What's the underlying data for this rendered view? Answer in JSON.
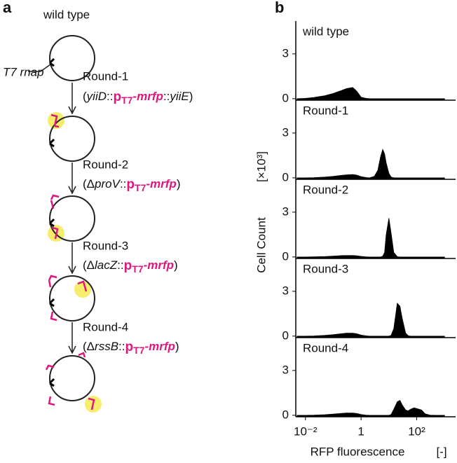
{
  "panel_a": {
    "label": "a",
    "start": "wild type",
    "gene": "T7 rnap",
    "rounds": [
      {
        "name": "Round-1",
        "open": "(",
        "gene": "yiiD",
        "link": "::",
        "promoter": "p",
        "promoter_sub": "T7",
        "cargo": "-mrfp",
        "link2": "::",
        "gene2": "yiiE",
        "close": ")"
      },
      {
        "name": "Round-2",
        "open": "(Δ",
        "gene": "proV",
        "link": "::",
        "promoter": "p",
        "promoter_sub": "T7",
        "cargo": "-mrfp",
        "close": ")"
      },
      {
        "name": "Round-3",
        "open": "(Δ",
        "gene": "lacZ",
        "link": "::",
        "promoter": "p",
        "promoter_sub": "T7",
        "cargo": "-mrfp",
        "close": ")"
      },
      {
        "name": "Round-4",
        "open": "(Δ",
        "gene": "rssB",
        "link": "::",
        "promoter": "p",
        "promoter_sub": "T7",
        "cargo": "-mrfp",
        "close": ")"
      }
    ]
  },
  "panel_b": {
    "label": "b",
    "ylabel": "Cell Count",
    "yunit": "[×10³]",
    "xlabel": "RFP fluorescence",
    "xunit": "[-]"
  },
  "chart_data": [
    {
      "type": "area",
      "title": "wild type",
      "color": "#000000",
      "xscale": "log",
      "xlim": [
        0.0045,
        2500
      ],
      "ylim": [
        -0.1,
        5.2
      ],
      "yticks": [
        0,
        3
      ],
      "x": [
        0.005,
        0.01,
        0.02,
        0.05,
        0.1,
        0.2,
        0.3,
        0.5,
        0.7,
        1,
        1.5,
        2,
        3,
        4,
        5,
        6,
        7,
        8,
        10,
        12,
        15,
        20,
        25,
        30,
        40,
        50,
        60,
        80,
        100,
        150,
        200,
        300,
        500,
        1000
      ],
      "values": [
        0,
        0.02,
        0.08,
        0.2,
        0.35,
        0.55,
        0.68,
        0.75,
        0.5,
        0.1,
        0.02,
        0,
        0,
        0,
        0,
        0,
        0,
        0,
        0,
        0,
        0,
        0,
        0,
        0,
        0,
        0,
        0,
        0,
        0,
        0,
        0,
        0,
        0,
        0
      ]
    },
    {
      "type": "area",
      "title": "Round-1",
      "color": "#000000",
      "xscale": "log",
      "xlim": [
        0.0045,
        2500
      ],
      "ylim": [
        -0.1,
        5.2
      ],
      "yticks": [
        0,
        3
      ],
      "x": [
        0.005,
        0.01,
        0.02,
        0.05,
        0.1,
        0.2,
        0.3,
        0.5,
        0.7,
        1,
        1.5,
        2,
        3,
        4,
        5,
        6,
        7,
        8,
        10,
        12,
        15,
        20,
        25,
        30,
        40,
        50,
        60,
        80,
        100,
        150,
        200,
        300,
        500,
        1000
      ],
      "values": [
        0,
        0,
        0.01,
        0.05,
        0.1,
        0.17,
        0.2,
        0.22,
        0.18,
        0.08,
        0.02,
        0,
        0.1,
        0.5,
        1.4,
        1.9,
        1.6,
        1.0,
        0.3,
        0.05,
        0,
        0,
        0,
        0,
        0,
        0,
        0,
        0,
        0,
        0,
        0,
        0,
        0,
        0
      ]
    },
    {
      "type": "area",
      "title": "Round-2",
      "color": "#000000",
      "xscale": "log",
      "xlim": [
        0.0045,
        2500
      ],
      "ylim": [
        -0.1,
        5.2
      ],
      "yticks": [
        0,
        3
      ],
      "x": [
        0.005,
        0.01,
        0.02,
        0.05,
        0.1,
        0.2,
        0.3,
        0.5,
        0.7,
        1,
        1.5,
        2,
        3,
        4,
        5,
        6,
        7,
        8,
        10,
        12,
        15,
        20,
        25,
        30,
        40,
        50,
        60,
        80,
        100,
        150,
        200,
        300,
        500,
        1000
      ],
      "values": [
        0,
        0,
        0.01,
        0.03,
        0.06,
        0.09,
        0.1,
        0.1,
        0.08,
        0.04,
        0.01,
        0,
        0,
        0,
        0,
        0.05,
        0.3,
        1.5,
        2.6,
        1.6,
        0.3,
        0.02,
        0,
        0,
        0,
        0,
        0,
        0,
        0,
        0,
        0,
        0,
        0,
        0
      ]
    },
    {
      "type": "area",
      "title": "Round-3",
      "color": "#000000",
      "xscale": "log",
      "xlim": [
        0.0045,
        2500
      ],
      "ylim": [
        -0.1,
        5.2
      ],
      "yticks": [
        0,
        3
      ],
      "x": [
        0.005,
        0.01,
        0.02,
        0.05,
        0.1,
        0.2,
        0.3,
        0.5,
        0.7,
        1,
        1.5,
        2,
        3,
        4,
        5,
        6,
        7,
        8,
        10,
        12,
        15,
        20,
        25,
        30,
        40,
        50,
        60,
        80,
        100,
        150,
        200,
        300,
        500,
        1000
      ],
      "values": [
        0,
        0,
        0.01,
        0.05,
        0.1,
        0.16,
        0.2,
        0.2,
        0.16,
        0.07,
        0.02,
        0,
        0,
        0,
        0,
        0,
        0,
        0,
        0,
        0.05,
        0.5,
        2.2,
        2.0,
        1.2,
        0.2,
        0.02,
        0,
        0,
        0,
        0,
        0,
        0,
        0,
        0
      ]
    },
    {
      "type": "area",
      "title": "Round-4",
      "color": "#000000",
      "xscale": "log",
      "xlim": [
        0.0045,
        2500
      ],
      "ylim": [
        -0.1,
        5.2
      ],
      "yticks": [
        0,
        3
      ],
      "xticks": [
        {
          "value": 0.01,
          "label": "10⁻²"
        },
        1,
        {
          "value": 100,
          "label": "10²"
        }
      ],
      "x": [
        0.005,
        0.01,
        0.02,
        0.05,
        0.1,
        0.2,
        0.3,
        0.5,
        0.7,
        1,
        1.5,
        2,
        3,
        4,
        5,
        6,
        7,
        8,
        10,
        12,
        15,
        20,
        25,
        30,
        40,
        50,
        60,
        80,
        100,
        150,
        200,
        300,
        500,
        1000
      ],
      "values": [
        0,
        0,
        0.01,
        0.04,
        0.08,
        0.13,
        0.15,
        0.15,
        0.12,
        0.05,
        0.01,
        0,
        0,
        0,
        0,
        0,
        0,
        0,
        0,
        0.05,
        0.4,
        0.9,
        1.0,
        0.7,
        0.35,
        0.3,
        0.4,
        0.5,
        0.45,
        0.35,
        0.1,
        0.01,
        0,
        0
      ]
    }
  ]
}
